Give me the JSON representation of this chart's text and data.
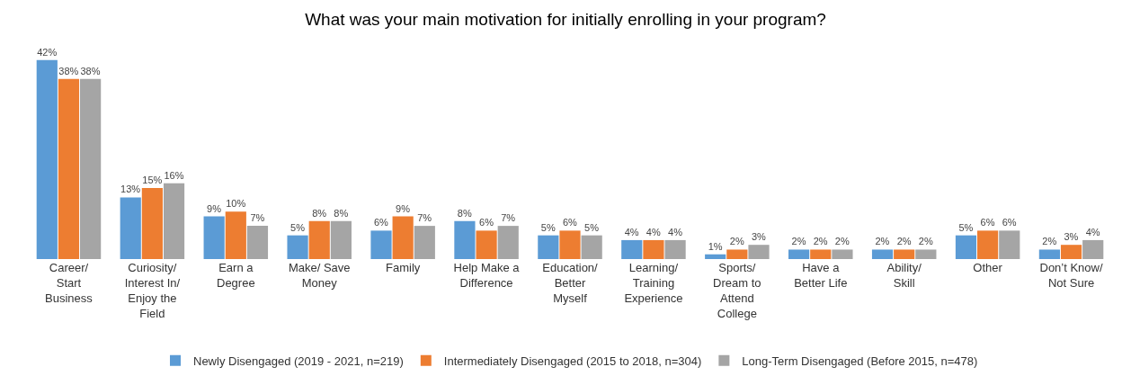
{
  "chart_data": {
    "type": "bar",
    "title": "What was your main motivation for initially enrolling in your program?",
    "categories": [
      "Career/ Start Business",
      "Curiosity/ Interest In/ Enjoy the Field",
      "Earn a Degree",
      "Make/ Save Money",
      "Family",
      "Help Make a Difference",
      "Education/ Better Myself",
      "Learning/ Training Experience",
      "Sports/ Dream to Attend College",
      "Have a Better Life",
      "Ability/ Skill",
      "Other",
      "Don’t Know/ Not Sure"
    ],
    "series": [
      {
        "name": "Newly Disengaged (2019 - 2021, n=219)",
        "color": "#5b9bd5",
        "values": [
          42,
          13,
          9,
          5,
          6,
          8,
          5,
          4,
          1,
          2,
          2,
          5,
          2
        ],
        "value_labels": [
          "42%",
          "13%",
          "9%",
          "5%",
          "6%",
          "8%",
          "5%",
          "4%",
          "1%",
          "2%",
          "2%",
          "5%",
          "2%"
        ]
      },
      {
        "name": "Intermediately Disengaged (2015 to 2018, n=304)",
        "color": "#ed7d31",
        "values": [
          38,
          15,
          10,
          8,
          9,
          6,
          6,
          4,
          2,
          2,
          2,
          6,
          3
        ],
        "value_labels": [
          "38%",
          "15%",
          "10%",
          "8%",
          "9%",
          "6%",
          "6%",
          "4%",
          "2%",
          "2%",
          "2%",
          "6%",
          "3%"
        ]
      },
      {
        "name": "Long-Term Disengaged (Before 2015, n=478)",
        "color": "#a5a5a5",
        "values": [
          38,
          16,
          7,
          8,
          7,
          7,
          5,
          4,
          3,
          2,
          2,
          6,
          4
        ],
        "value_labels": [
          "38%",
          "16%",
          "7%",
          "8%",
          "7%",
          "7%",
          "5%",
          "4%",
          "3%",
          "2%",
          "2%",
          "6%",
          "4%"
        ]
      }
    ],
    "legend": "bottom",
    "grid": false
  }
}
